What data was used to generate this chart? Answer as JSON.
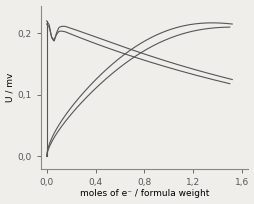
{
  "title": "",
  "xlabel": "moles of e⁻ / formula weight",
  "ylabel": "U / mv",
  "xlim": [
    -0.05,
    1.65
  ],
  "ylim": [
    -0.02,
    0.245
  ],
  "xticks": [
    0.0,
    0.4,
    0.8,
    1.2,
    1.6
  ],
  "yticks": [
    0.0,
    0.1,
    0.2
  ],
  "xtick_labels": [
    "0,0",
    "0,4",
    "0,8",
    "1,2",
    "1,6"
  ],
  "ytick_labels": [
    "0,0",
    "0,1",
    "0,2"
  ],
  "line_color": "#555555",
  "background": "#f0eeeb",
  "fig_background": "#f0eeeb"
}
